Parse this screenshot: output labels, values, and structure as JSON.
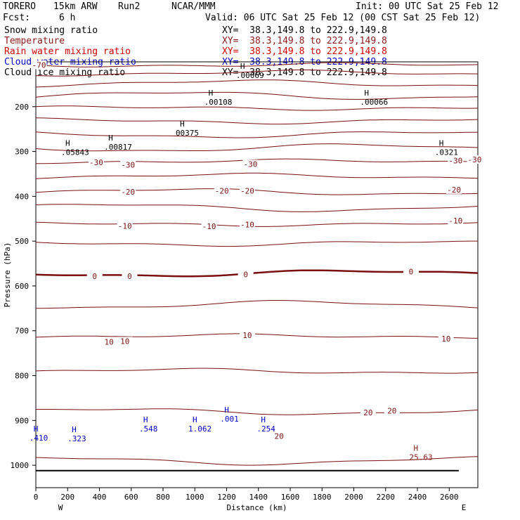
{
  "header": {
    "model_name": "TORERO",
    "resolution": "15km ARW",
    "run": "Run2",
    "org": "NCAR/MMM",
    "init": "Init: 00 UTC Sat 25 Feb 12",
    "fcst_label": "Fcst:",
    "fcst_value": "6 h",
    "valid": "Valid: 06 UTC Sat 25 Feb 12 (00 CST Sat 25 Feb 12)"
  },
  "fields": [
    {
      "name": "Snow mixing ratio",
      "color": "#000000",
      "xy": "XY=  38.3,149.8 to 222.9,149.8"
    },
    {
      "name": "Temperature",
      "color": "#8b1a1a",
      "xy": "XY=  38.3,149.8 to 222.9,149.8"
    },
    {
      "name": "Rain water mixing ratio",
      "color": "#cc0000",
      "xy": "XY=  38.3,149.8 to 222.9,149.8"
    },
    {
      "name": "Cloud water mixing ratio",
      "color": "#0000cc",
      "xy": "XY=  38.3,149.8 to 222.9,149.8"
    },
    {
      "name": "Cloud ice mixing ratio",
      "color": "#000000",
      "xy": "XY=  38.3,149.8 to 222.9,149.8"
    }
  ],
  "chart_data": {
    "type": "contour",
    "xlabel": "Distance (km)",
    "ylabel": "Pressure (hPa)",
    "xlim": [
      0,
      2780
    ],
    "ylim": [
      1050,
      100
    ],
    "x_ticks": [
      0,
      200,
      400,
      600,
      800,
      1000,
      1200,
      1400,
      1600,
      1800,
      2000,
      2200,
      2400,
      2600
    ],
    "y_ticks": [
      200,
      300,
      400,
      500,
      600,
      700,
      800,
      900,
      1000
    ],
    "x_end_labels": {
      "left": "W",
      "right": "E"
    },
    "temperature_isotherms": [
      {
        "value": -70,
        "p": 107,
        "bold": false
      },
      {
        "value": -65,
        "p": 125,
        "bold": false
      },
      {
        "value": -60,
        "p": 148,
        "bold": false
      },
      {
        "value": -55,
        "p": 175,
        "bold": false
      },
      {
        "value": -50,
        "p": 203,
        "bold": false
      },
      {
        "value": -45,
        "p": 232,
        "bold": false
      },
      {
        "value": -40,
        "p": 262,
        "bold": false
      },
      {
        "value": -35,
        "p": 292,
        "bold": false
      },
      {
        "value": -30,
        "p": 322,
        "bold": false
      },
      {
        "value": -25,
        "p": 355,
        "bold": false
      },
      {
        "value": -20,
        "p": 390,
        "bold": false
      },
      {
        "value": -15,
        "p": 425,
        "bold": false
      },
      {
        "value": -10,
        "p": 462,
        "bold": false
      },
      {
        "value": -5,
        "p": 505,
        "bold": false
      },
      {
        "value": 0,
        "p": 572,
        "bold": true
      },
      {
        "value": 5,
        "p": 642,
        "bold": false
      },
      {
        "value": 10,
        "p": 712,
        "bold": false
      },
      {
        "value": 15,
        "p": 790,
        "bold": false
      },
      {
        "value": 20,
        "p": 880,
        "bold": false
      },
      {
        "value": 25,
        "p": 990,
        "bold": false
      }
    ],
    "temperature_labels": [
      {
        "text": "-70",
        "x": 20,
        "p": 107
      },
      {
        "text": "-30",
        "x": 380,
        "p": 324
      },
      {
        "text": "-30",
        "x": 580,
        "p": 330
      },
      {
        "text": "-30",
        "x": 1350,
        "p": 328
      },
      {
        "text": "-30",
        "x": 2640,
        "p": 320
      },
      {
        "text": "-30",
        "x": 2760,
        "p": 318
      },
      {
        "text": "-20",
        "x": 580,
        "p": 390
      },
      {
        "text": "-20",
        "x": 1170,
        "p": 388
      },
      {
        "text": "-20",
        "x": 1330,
        "p": 388
      },
      {
        "text": "-20",
        "x": 2630,
        "p": 385
      },
      {
        "text": "-10",
        "x": 560,
        "p": 466
      },
      {
        "text": "-10",
        "x": 1090,
        "p": 467
      },
      {
        "text": "-10",
        "x": 1330,
        "p": 463
      },
      {
        "text": "-10",
        "x": 2640,
        "p": 454
      },
      {
        "text": "0",
        "x": 370,
        "p": 578
      },
      {
        "text": "0",
        "x": 590,
        "p": 578
      },
      {
        "text": "0",
        "x": 1320,
        "p": 574
      },
      {
        "text": "0",
        "x": 2360,
        "p": 568
      },
      {
        "text": "10",
        "x": 460,
        "p": 725
      },
      {
        "text": "10",
        "x": 560,
        "p": 723
      },
      {
        "text": "10",
        "x": 1330,
        "p": 710
      },
      {
        "text": "10",
        "x": 2580,
        "p": 718
      },
      {
        "text": "20",
        "x": 2090,
        "p": 882
      },
      {
        "text": "20",
        "x": 2240,
        "p": 878
      },
      {
        "text": "20",
        "x": 1530,
        "p": 935
      }
    ],
    "maxima": [
      {
        "text": ".05843",
        "x": 230,
        "p": 300,
        "color": "#000000"
      },
      {
        "text": ".00817",
        "x": 500,
        "p": 288,
        "color": "#000000"
      },
      {
        "text": "00375",
        "x": 950,
        "p": 257,
        "color": "#000000"
      },
      {
        "text": ".00108",
        "x": 1130,
        "p": 188,
        "color": "#000000"
      },
      {
        "text": ".00066",
        "x": 2110,
        "p": 188,
        "color": "#000000"
      },
      {
        "text": ".0321",
        "x": 2580,
        "p": 300,
        "color": "#000000"
      },
      {
        "text": ".00069",
        "x": 1330,
        "p": 128,
        "color": "#000000"
      },
      {
        "text": ".410",
        "x": 30,
        "p": 937,
        "color": "#0000cc"
      },
      {
        "text": ".323",
        "x": 270,
        "p": 939,
        "color": "#0000cc"
      },
      {
        "text": ".548",
        "x": 720,
        "p": 917,
        "color": "#0000cc"
      },
      {
        "text": "1.062",
        "x": 1030,
        "p": 917,
        "color": "#0000cc"
      },
      {
        "text": ".001",
        "x": 1230,
        "p": 895,
        "color": "#0000cc"
      },
      {
        "text": ".254",
        "x": 1460,
        "p": 917,
        "color": "#0000cc"
      },
      {
        "text": "25.63",
        "x": 2420,
        "p": 980,
        "color": "#8b1a1a"
      }
    ]
  }
}
